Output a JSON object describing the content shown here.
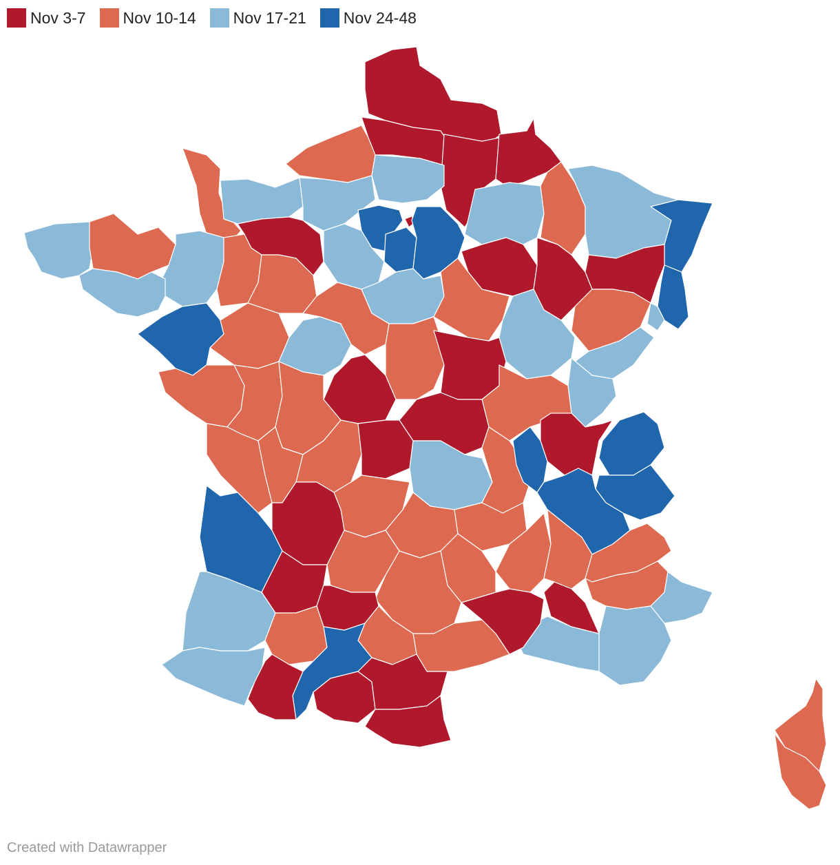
{
  "legend": [
    {
      "label": "Nov 3-7",
      "color": "#b0182c"
    },
    {
      "label": "Nov 10-14",
      "color": "#dc6950"
    },
    {
      "label": "Nov 17-21",
      "color": "#8bbad9"
    },
    {
      "label": "Nov 24-48",
      "color": "#2066ad"
    }
  ],
  "footer": "Created with Datawrapper"
}
